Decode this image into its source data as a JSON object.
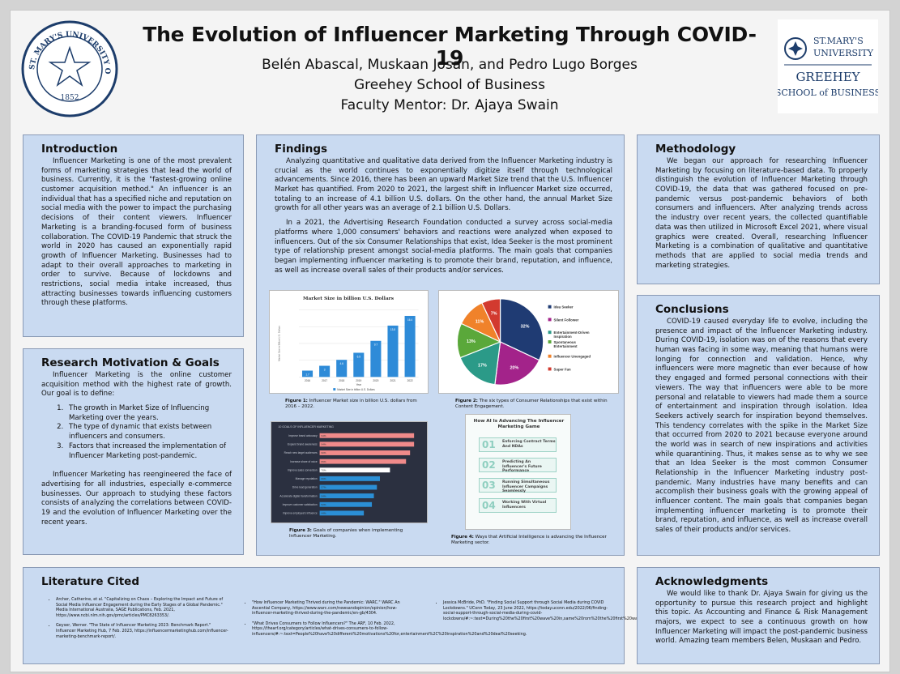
{
  "header": {
    "title": "The Evolution of Influencer Marketing Through COVID-19",
    "authors": "Belén Abascal, Muskaan Josan, and Pedro Lugo Borges",
    "school": "Greehey School of Business",
    "mentor": "Faculty Mentor: Dr. Ajaya Swain",
    "seal_text": "ST. MARY'S UNIVERSITY OF SAN ANTONIO, TEXAS",
    "seal_year": "1852",
    "logo_line1": "ST.MARY'S",
    "logo_line2": "UNIVERSITY",
    "logo_line3": "GREEHEY",
    "logo_line4": "SCHOOL of BUSINESS"
  },
  "introduction": {
    "heading": "Introduction",
    "text": "Influencer Marketing is one of the most prevalent forms of marketing strategies that lead the world of business. Currently, it is the \"fastest-growing online customer acquisition method.\" An influencer is an individual that has a specified niche and reputation on social media with the power to impact the purchasing decisions of their content viewers. Influencer Marketing is a branding-focused form of business collaboration. The COVID-19 Pandemic that struck the world in 2020 has caused an exponentially rapid growth of Influencer Marketing. Businesses had to adapt to their overall approaches to marketing in order to survive. Because of lockdowns and restrictions, social media intake increased, thus attracting businesses towards influencing customers through these platforms."
  },
  "motivation": {
    "heading": "Research Motivation & Goals",
    "intro": "Influencer Marketing is the online customer acquisition method with the highest rate of growth. Our goal is to define:",
    "goals": [
      "The growth in Market Size of Influencing Marketing over the years.",
      "The type of dynamic that exists between influencers and consumers.",
      "Factors that increased the implementation of Influencer Marketing post-pandemic."
    ],
    "closing": "Influencer Marketing has reengineered the face of advertising for all industries, especially e-commerce businesses. Our approach to studying these factors consists of analyzing the correlations between COVID-19 and the evolution of Influencer Marketing over the recent years."
  },
  "findings": {
    "heading": "Findings",
    "p1": "Analyzing quantitative and qualitative data derived from the Influencer Marketing industry is crucial as the world continues to exponentially digitize itself through technological advancements. Since 2016, there has been an upward Market Size trend that the U.S. Influencer Market has quantified. From 2020 to 2021, the largest shift in Influencer Market size occurred, totaling to an increase of 4.1 billion U.S. dollars. On the other hand, the annual Market Size growth for all other years was an average of 2.1 billion U.S. Dollars.",
    "p2": "In a 2021, the Advertising Research Foundation conducted a survey across social-media platforms where 1,000 consumers' behaviors and reactions were analyzed when exposed to influencers. Out of the six Consumer Relationships that exist, Idea Seeker is the most prominent type of relationship present amongst social-media platforms. The main goals that companies began implementing influencer marketing is to promote their brand, reputation, and influence, as well as increase overall sales of their products and/or services.",
    "fig1_caption_label": "Figure 1:",
    "fig1_caption": "Influencer Market size in billion U.S. dollars from 2016 – 2022.",
    "fig2_caption_label": "Figure 2:",
    "fig2_caption": "The six types of Consumer Relationships that exist within Content Engagement.",
    "fig3_caption_label": "Figure 3:",
    "fig3_caption": "Goals of companies when implementing Influencer Marketing.",
    "fig4_caption_label": "Figure 4:",
    "fig4_caption": "Ways that Artificial Intelligence is advancing the Influencer Marketing sector."
  },
  "methodology": {
    "heading": "Methodology",
    "text": "We began our approach for researching Influencer Marketing by focusing on literature-based data. To properly distinguish the evolution of Influencer Marketing through COVID-19, the data that was gathered focused on pre-pandemic versus post-pandemic behaviors of both consumers and influencers. After analyzing trends across the industry over recent years, the collected quantifiable data was then utilized in Microsoft Excel 2021, where visual graphics were created. Overall, researching Influencer Marketing is a combination of qualitative and quantitative methods that are applied to social media trends and marketing strategies."
  },
  "conclusions": {
    "heading": "Conclusions",
    "text": "COVID-19 caused everyday life to evolve, including the presence and impact of the Influencer Marketing industry. During COVID-19, isolation was on of the reasons that every human was facing in some way, meaning that humans were longing for connection and validation. Hence, why influencers were more magnetic than ever because of how they engaged and formed personal connections with their viewers. The way that influencers were able to be more personal and relatable to viewers had made them a source of entertainment and inspiration through isolation. Idea Seekers actively search for inspiration beyond themselves. This tendency correlates with the spike in the Market Size that occurred from 2020 to 2021 because everyone around the world was in search of new inspirations and activities while quarantining. Thus, it makes sense as to why we see that an Idea Seeker is the most common Consumer Relationship in the Influencer Marketing industry post-pandemic. Many industries have many benefits and can accomplish their business goals with the growing appeal of influencer content. The main goals that companies began implementing influencer marketing is to promote their brand, reputation, and influence, as well as increase overall sales of their products and/or services."
  },
  "literature": {
    "heading": "Literature Cited",
    "col1": [
      "Archer, Catherine, et al. \"Capitalizing on Chaos – Exploring the Impact and Future of Social Media Influencer Engagement during the Early Stages of a Global Pandemic.\" Media International Australia, SAGE Publications, Feb. 2021, https://www.ncbi.nlm.nih.gov/pmc/articles/PMC8263353/.",
      "Geyser, Werner. \"The State of Influencer Marketing 2023: Benchmark Report.\" Influencer Marketing Hub, 7 Feb. 2023, https://influencermarketinghub.com/influencer-marketing-benchmark-report/."
    ],
    "col2": [
      "\"How Influencer Marketing Thrived during the Pandemic: WARC.\" WARC An Ascential Company, https://www.warc.com/newsandopinion/opinion/how-influencer-marketing-thrived-during-the-pandemic/en-gb/4304.",
      "\"What Drives Consumers to Follow Influencers?\" The ARF, 10 Feb. 2022, https://thearf.org/category/articles/what-drives-consumers-to-follow-influencers/#:~:text=People%20have%20different%20motivations%20for,entertainment%2C%20inspiration%20and%20deal%20seeking."
    ],
    "col3": [
      "Jessica McBride, PhD. \"Finding Social Support through Social Media during COVID Lockdowns.\" UConn Today, 23 June 2022, https://today.uconn.edu/2022/06/finding-social-support-through-social-media-during-covid-lockdowns/#:~:text=During%20the%20first%20wave%20in,same%20rom%20the%20first%20wave."
    ]
  },
  "acknowledgments": {
    "heading": "Acknowledgments",
    "text": "We would like to thank Dr. Ajaya Swain for giving us the opportunity to pursue this research project and highlight this topic. As Accounting and Finance & Risk Management majors, we expect to see a continuous growth on how Influencer Marketing will impact the post-pandemic business world. Amazing team members Belen, Muskaan and Pedro."
  },
  "fig4": {
    "title": "How AI Is Advancing The Influencer Marketing Game",
    "items": [
      {
        "num": "01",
        "text": "Enforcing Contract Terms And NDAs"
      },
      {
        "num": "02",
        "text": "Predicting An Influencer's Future Performance"
      },
      {
        "num": "03",
        "text": "Running Simultaneous Influencer Campaigns Seamlessly"
      },
      {
        "num": "04",
        "text": "Working With Virtual Influencers"
      }
    ]
  },
  "chart_data": [
    {
      "type": "bar",
      "title": "Market Size in billion U.S. Dollars",
      "xlabel": "Year",
      "ylabel": "Market Size in Billion U.S. Dollars",
      "legend": "Market Size in billion U.S. Dollars",
      "categories": [
        "2016",
        "2017",
        "2018",
        "2019",
        "2020",
        "2021",
        "2022"
      ],
      "values": [
        1.7,
        3.0,
        4.6,
        6.5,
        9.7,
        13.8,
        16.4
      ],
      "ylim": [
        0,
        18
      ],
      "color": "#2e8bd8"
    },
    {
      "type": "pie",
      "categories": [
        "Idea Seeker",
        "Silent Follower",
        "Entertainment-Driven Inspiration",
        "Spontaneous Entertainment",
        "Influencer Unengaged",
        "Super Fan"
      ],
      "values": [
        32,
        20,
        17,
        13,
        11,
        7
      ],
      "colors": [
        "#1f3b73",
        "#a3238a",
        "#2b9a88",
        "#5aa83a",
        "#f0822a",
        "#d23a2f"
      ],
      "legend": "right"
    },
    {
      "type": "bar",
      "orientation": "horizontal",
      "title": "10 GOALS OF INFLUENCER MARKETING",
      "categories": [
        "Improve brand advocacy",
        "Expand brand awareness",
        "Reach new target audiences",
        "Increase share of voice",
        "Improve sales conversion",
        "Manage reputation",
        "Drive lead generation",
        "Accelerate digital transformation",
        "Improve customer satisfaction",
        "Improve employee's influence"
      ],
      "values": [
        94,
        94,
        90,
        86,
        70,
        60,
        57,
        54,
        52,
        44
      ],
      "colors": [
        "#f08a8a",
        "#f08a8a",
        "#f08a8a",
        "#f08a8a",
        "#ffffff",
        "#2b8fd6",
        "#2b8fd6",
        "#2b8fd6",
        "#2b8fd6",
        "#2b8fd6"
      ]
    }
  ]
}
